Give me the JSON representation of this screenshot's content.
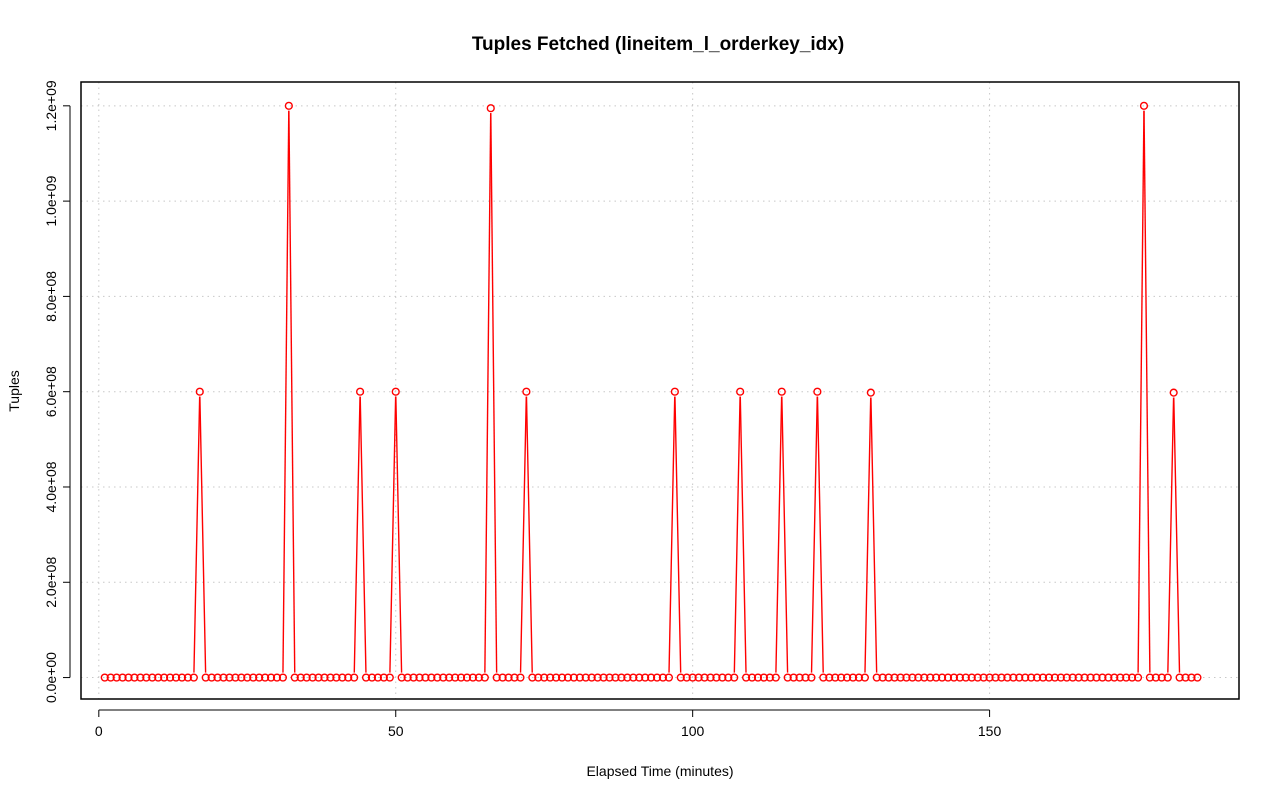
{
  "colors": {
    "series": "#ff0000",
    "grid": "#c8c8c8",
    "axis": "#000000"
  },
  "chart_data": {
    "type": "line",
    "title": "Tuples Fetched (lineitem_l_orderkey_idx)",
    "xlabel": "Elapsed Time (minutes)",
    "ylabel": "Tuples",
    "xlim": [
      -3,
      192
    ],
    "ylim": [
      -45000000,
      1250000000
    ],
    "x_ticks": [
      0,
      50,
      100,
      150
    ],
    "x_tick_labels": [
      "0",
      "50",
      "100",
      "150"
    ],
    "y_ticks": [
      0,
      200000000,
      400000000,
      600000000,
      800000000,
      1000000000,
      1200000000
    ],
    "y_tick_labels": [
      "0.0e+00",
      "2.0e+08",
      "4.0e+08",
      "6.0e+08",
      "8.0e+08",
      "1.0e+09",
      "1.2e+09"
    ],
    "grid": true,
    "marker": "open-circle",
    "line_style": "segments-with-gaps",
    "series": [
      {
        "x_start": 1,
        "x_end": 185,
        "baseline": 0,
        "peaks": [
          {
            "x": 17,
            "y": 600000000
          },
          {
            "x": 32,
            "y": 1200000000
          },
          {
            "x": 44,
            "y": 600000000
          },
          {
            "x": 50,
            "y": 600000000
          },
          {
            "x": 66,
            "y": 1195000000
          },
          {
            "x": 72,
            "y": 600000000
          },
          {
            "x": 97,
            "y": 600000000
          },
          {
            "x": 108,
            "y": 600000000
          },
          {
            "x": 115,
            "y": 600000000
          },
          {
            "x": 121,
            "y": 600000000
          },
          {
            "x": 130,
            "y": 598000000
          },
          {
            "x": 176,
            "y": 1200000000
          },
          {
            "x": 181,
            "y": 598000000
          }
        ]
      }
    ]
  }
}
